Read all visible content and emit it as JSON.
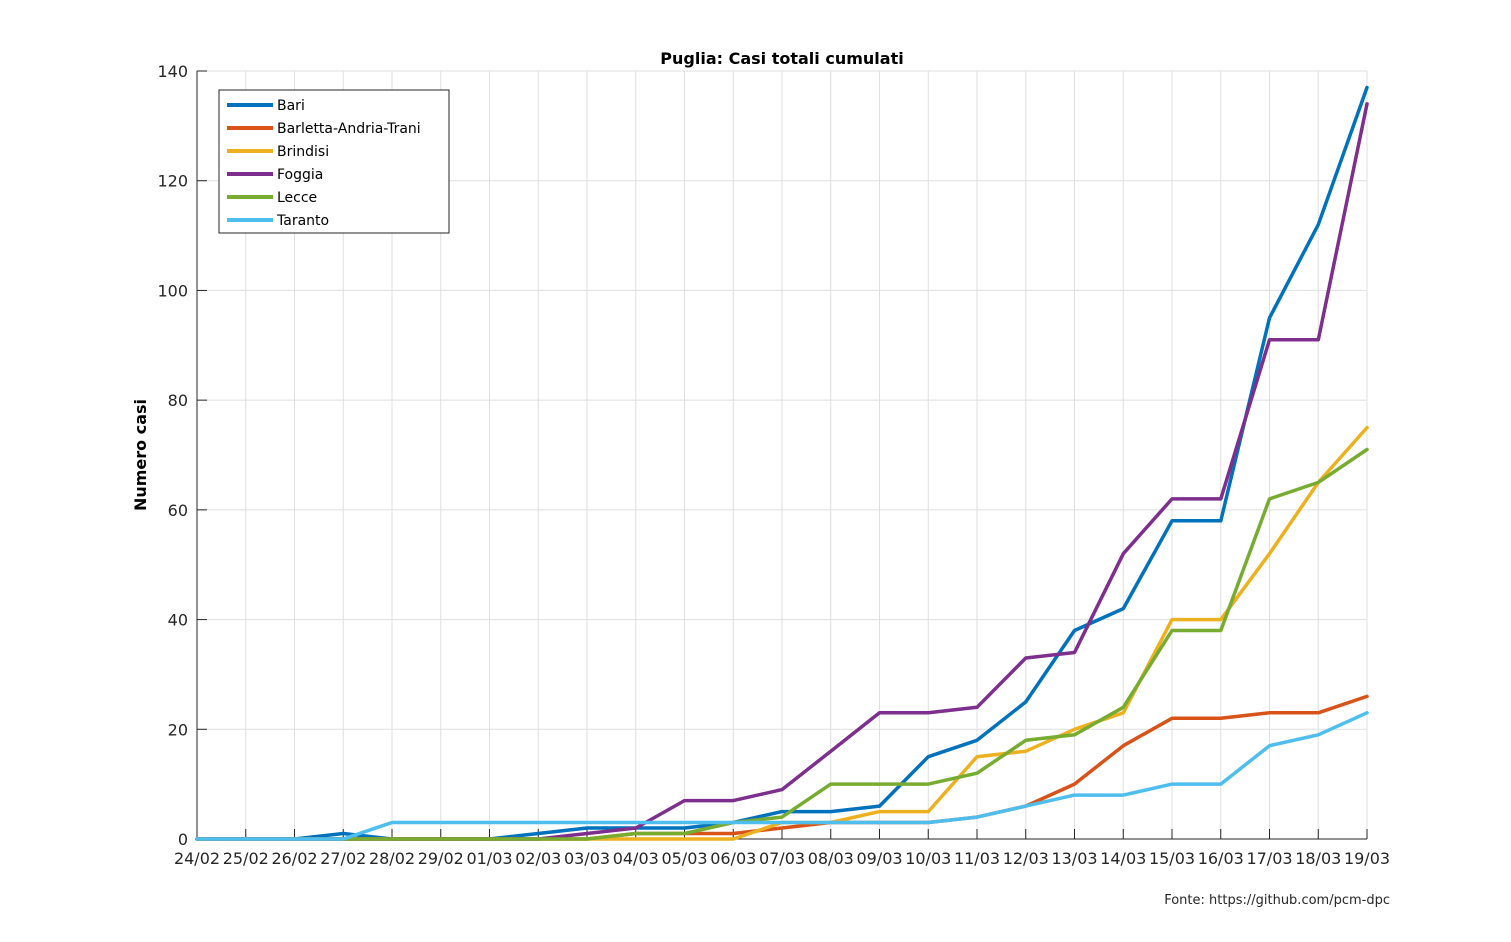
{
  "chart_data": {
    "type": "line",
    "title": "Puglia: Casi totali cumulati",
    "xlabel": "",
    "ylabel": "Numero casi",
    "ylim": [
      0,
      140
    ],
    "yticks": [
      0,
      20,
      40,
      60,
      80,
      100,
      120,
      140
    ],
    "grid": true,
    "legend_position": "top-left",
    "categories": [
      "24/02",
      "25/02",
      "26/02",
      "27/02",
      "28/02",
      "29/02",
      "01/03",
      "02/03",
      "03/03",
      "04/03",
      "05/03",
      "06/03",
      "07/03",
      "08/03",
      "09/03",
      "10/03",
      "11/03",
      "12/03",
      "13/03",
      "14/03",
      "15/03",
      "16/03",
      "17/03",
      "18/03",
      "19/03"
    ],
    "series": [
      {
        "name": "Bari",
        "color": "#0072BD",
        "values": [
          0,
          0,
          0,
          1,
          0,
          0,
          0,
          1,
          2,
          2,
          2,
          3,
          5,
          5,
          6,
          15,
          18,
          25,
          38,
          42,
          58,
          58,
          95,
          112,
          137
        ]
      },
      {
        "name": "Barletta-Andria-Trani",
        "color": "#D95319",
        "values": [
          0,
          0,
          0,
          0,
          0,
          0,
          0,
          0,
          0,
          1,
          1,
          1,
          2,
          3,
          3,
          3,
          4,
          6,
          10,
          17,
          22,
          22,
          23,
          23,
          26
        ]
      },
      {
        "name": "Brindisi",
        "color": "#EDB120",
        "values": [
          0,
          0,
          0,
          0,
          0,
          0,
          0,
          0,
          0,
          0,
          0,
          0,
          3,
          3,
          5,
          5,
          15,
          16,
          20,
          23,
          40,
          40,
          52,
          65,
          75
        ]
      },
      {
        "name": "Foggia",
        "color": "#7E2F8E",
        "values": [
          0,
          0,
          0,
          0,
          0,
          0,
          0,
          0,
          1,
          2,
          7,
          7,
          9,
          16,
          23,
          23,
          24,
          33,
          34,
          52,
          62,
          62,
          91,
          91,
          134
        ]
      },
      {
        "name": "Lecce",
        "color": "#77AC30",
        "values": [
          0,
          0,
          0,
          0,
          0,
          0,
          0,
          0,
          0,
          1,
          1,
          3,
          4,
          10,
          10,
          10,
          12,
          18,
          19,
          24,
          38,
          38,
          62,
          65,
          71
        ]
      },
      {
        "name": "Taranto",
        "color": "#4DBEEE",
        "values": [
          0,
          0,
          0,
          0,
          3,
          3,
          3,
          3,
          3,
          3,
          3,
          3,
          3,
          3,
          3,
          3,
          4,
          6,
          8,
          8,
          10,
          10,
          17,
          19,
          23
        ]
      }
    ]
  },
  "source_label": "Fonte:  https://github.com/pcm-dpc"
}
